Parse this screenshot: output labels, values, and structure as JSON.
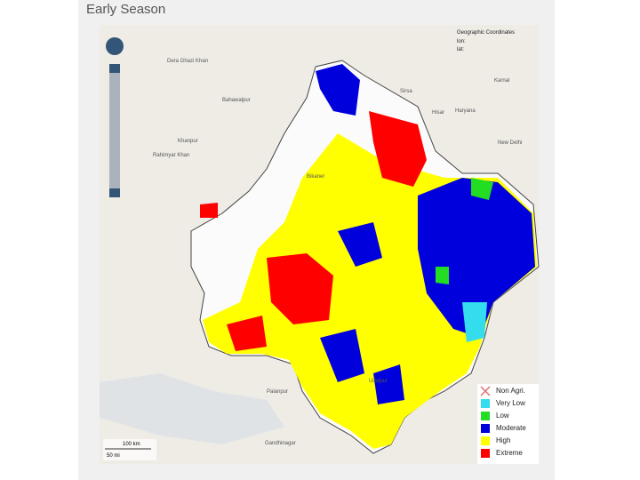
{
  "title": "Early Season",
  "coordinates": {
    "title": "Geographic Coordinates",
    "lon": "lon:",
    "lat": "lat:"
  },
  "legend": [
    {
      "label": "Non Agri.",
      "color": "#e07070"
    },
    {
      "label": "Very Low",
      "color": "#33ddee"
    },
    {
      "label": "Low",
      "color": "#22dd22"
    },
    {
      "label": "Moderate",
      "color": "#0000dd"
    },
    {
      "label": "High",
      "color": "#ffff00"
    },
    {
      "label": "Extreme",
      "color": "#ff0000"
    }
  ],
  "places": [
    "Dera Ghazi Khan",
    "Bahawalpur",
    "Khanpur",
    "Rahimyar Khan",
    "Sirsa",
    "Hisar",
    "Haryana",
    "Karnal",
    "New Delhi",
    "Palanpur",
    "Gandhinagar",
    "Udaipur",
    "Bikaner"
  ],
  "scale": {
    "km": "100 km",
    "mi": "50 mi"
  }
}
